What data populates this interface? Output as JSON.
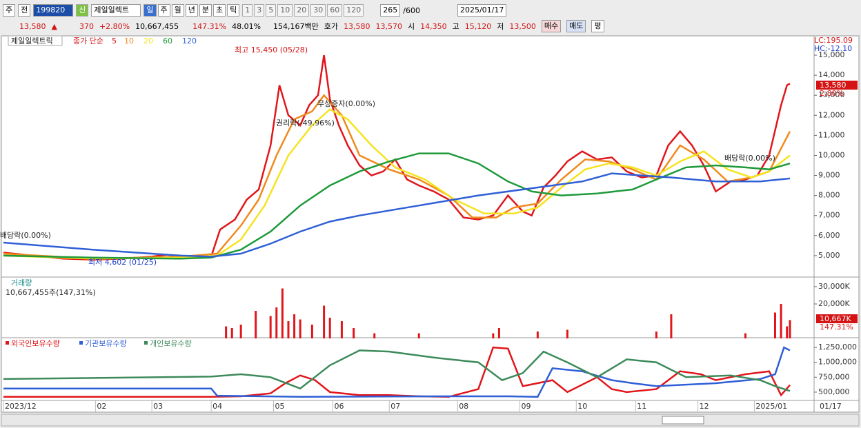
{
  "toolbar": {
    "stock_type": "주",
    "prev": "전",
    "code": "199820",
    "name": "제일일렉트",
    "new_badge": "신",
    "periods": [
      "일",
      "주",
      "월",
      "년",
      "분",
      "초",
      "틱"
    ],
    "minutes": [
      "1",
      "3",
      "5",
      "10",
      "20",
      "30",
      "60",
      "120"
    ],
    "count": "265",
    "count_max": "/600",
    "date": "2025/01/17"
  },
  "quote": {
    "price": "13,580",
    "direction": "▲",
    "change": "370",
    "change_pct": "+2.80%",
    "volume": "10,667,455",
    "volume_ratio": "147.31%",
    "turnover_pct": "48.01%",
    "amount": "154,167백만",
    "bid_ask_label": "호가",
    "ask": "13,580",
    "bid": "13,570",
    "open_label": "시",
    "open": "14,350",
    "high_label": "고",
    "high": "15,120",
    "low_label": "저",
    "low": "13,500",
    "buy": "매수",
    "sell": "매도",
    "eval": "평"
  },
  "current_date_label": "01/17",
  "chart_data": [
    {
      "type": "line",
      "name_label": "제일일렉트릭",
      "legend_prefix": "종가 단순",
      "lc_label": "LC:195.09",
      "hc_label": "HC:-12.10",
      "last_price_label": "13,580",
      "last_change_label": "2.80%",
      "annotations": [
        "최고 15,450 (05/28)",
        "최저 4,602 (01/25)",
        "배당락(0.00%)",
        "권리락(-49.96%)",
        "무상증자(0.00%)",
        "배당락(0.00%)"
      ],
      "xlim": [
        0,
        265
      ],
      "ylim": [
        4000,
        15860
      ],
      "yticks": [
        {
          "value": 5000,
          "label": "5,000"
        },
        {
          "value": 6000,
          "label": "6,000"
        },
        {
          "value": 7000,
          "label": "7,000"
        },
        {
          "value": 8000,
          "label": "8,000"
        },
        {
          "value": 9000,
          "label": "9,000"
        },
        {
          "value": 10000,
          "label": "10,000"
        },
        {
          "value": 11000,
          "label": "11,000"
        },
        {
          "value": 12000,
          "label": "12,000"
        },
        {
          "value": 13000,
          "label": "13,000"
        },
        {
          "value": 14000,
          "label": "14,000"
        },
        {
          "value": 15000,
          "label": "15,000"
        }
      ],
      "series": [
        {
          "name": "5",
          "color": "#e0161b",
          "x": [
            0,
            10,
            20,
            30,
            40,
            50,
            55,
            60,
            70,
            73,
            78,
            82,
            86,
            90,
            93,
            96,
            100,
            103,
            106,
            108,
            110,
            113,
            116,
            120,
            124,
            128,
            132,
            136,
            140,
            145,
            150,
            155,
            160,
            165,
            170,
            175,
            178,
            182,
            186,
            190,
            195,
            200,
            205,
            210,
            215,
            220,
            224,
            228,
            232,
            236,
            240,
            245,
            250,
            254,
            258,
            262,
            264,
            265
          ],
          "values": [
            5150,
            5000,
            4850,
            4800,
            4850,
            4950,
            5050,
            4950,
            4950,
            6300,
            6800,
            7800,
            8300,
            10500,
            13500,
            12000,
            11500,
            12500,
            13000,
            15000,
            12800,
            11500,
            10500,
            9500,
            9000,
            9200,
            9800,
            8800,
            8500,
            8200,
            7800,
            6900,
            6800,
            7000,
            8000,
            7200,
            7000,
            8400,
            9000,
            9700,
            10200,
            9800,
            9900,
            9200,
            8900,
            9000,
            10500,
            11200,
            10500,
            9500,
            8200,
            8700,
            8800,
            9000,
            10000,
            12500,
            13500,
            13580
          ]
        },
        {
          "name": "10",
          "color": "#f08a1c",
          "x": [
            0,
            30,
            60,
            72,
            80,
            86,
            92,
            98,
            104,
            108,
            114,
            120,
            130,
            140,
            150,
            158,
            166,
            172,
            180,
            188,
            196,
            204,
            212,
            220,
            228,
            236,
            244,
            252,
            258,
            265
          ],
          "values": [
            5100,
            4850,
            4950,
            5100,
            6500,
            7800,
            10000,
            11800,
            12200,
            13000,
            12000,
            10000,
            9300,
            8800,
            8000,
            6900,
            6900,
            7400,
            7600,
            8800,
            9800,
            9700,
            9300,
            8800,
            10500,
            9800,
            8700,
            8900,
            9200,
            11200
          ]
        },
        {
          "name": "20",
          "color": "#f5e31e",
          "x": [
            0,
            30,
            60,
            72,
            80,
            88,
            96,
            104,
            110,
            116,
            124,
            132,
            142,
            152,
            162,
            172,
            180,
            188,
            196,
            204,
            212,
            220,
            228,
            236,
            244,
            252,
            258,
            265
          ],
          "values": [
            5000,
            4850,
            4900,
            5000,
            5800,
            7500,
            10000,
            11500,
            12300,
            11800,
            10500,
            9400,
            8800,
            7800,
            7100,
            7100,
            7400,
            8400,
            9300,
            9600,
            9400,
            9000,
            9700,
            10200,
            9300,
            8900,
            9200,
            10000
          ]
        },
        {
          "name": "60",
          "color": "#1e9a3a",
          "x": [
            0,
            30,
            60,
            70,
            80,
            90,
            100,
            110,
            120,
            130,
            140,
            150,
            160,
            170,
            178,
            188,
            200,
            212,
            220,
            230,
            240,
            250,
            258,
            265
          ],
          "values": [
            5000,
            4900,
            4850,
            4900,
            5300,
            6200,
            7500,
            8500,
            9200,
            9700,
            10100,
            10100,
            9600,
            8700,
            8200,
            8000,
            8100,
            8300,
            8800,
            9400,
            9500,
            9400,
            9300,
            9600
          ]
        },
        {
          "name": "120",
          "color": "#2f5fd6",
          "x": [
            0,
            30,
            60,
            70,
            80,
            90,
            100,
            110,
            120,
            140,
            160,
            180,
            195,
            205,
            215,
            225,
            240,
            255,
            265
          ],
          "values": [
            5650,
            5300,
            5000,
            4950,
            5100,
            5600,
            6200,
            6700,
            7000,
            7500,
            8000,
            8400,
            8700,
            9100,
            9000,
            8900,
            8700,
            8700,
            8850
          ]
        }
      ]
    },
    {
      "type": "bar",
      "title": "거래량",
      "info": "10,667,455주(147,31%)",
      "current_label": "10,667K",
      "current_ratio_label": "147.31%",
      "xlim": [
        0,
        265
      ],
      "ylim": [
        0,
        34400000
      ],
      "yticks": [
        {
          "value": 20000000,
          "label": "20,000K"
        },
        {
          "value": 30000000,
          "label": "30,000K"
        }
      ],
      "series": [
        {
          "color": "#e0161b",
          "x": [
            75,
            77,
            80,
            85,
            90,
            92,
            94,
            96,
            98,
            100,
            104,
            108,
            110,
            114,
            118,
            125,
            140,
            165,
            167,
            180,
            190,
            220,
            225,
            250,
            260,
            262,
            264,
            265
          ],
          "values": [
            7000000,
            6000000,
            8000000,
            16000000,
            13000000,
            18000000,
            29000000,
            10000000,
            14000000,
            11000000,
            8000000,
            19000000,
            12000000,
            10000000,
            6000000,
            3000000,
            3000000,
            3000000,
            6000000,
            4000000,
            5000000,
            4000000,
            14000000,
            3000000,
            15000000,
            20000000,
            7000000,
            10667455
          ]
        }
      ]
    },
    {
      "type": "line",
      "xlim": [
        0,
        265
      ],
      "ylim": [
        372000,
        1378000
      ],
      "yticks": [
        {
          "value": 500000,
          "label": "500,000"
        },
        {
          "value": 750000,
          "label": "750,000"
        },
        {
          "value": 1000000,
          "label": "1,000,000"
        },
        {
          "value": 1250000,
          "label": "1,250,000"
        }
      ],
      "xticks": [
        {
          "value": 0,
          "label": "2023/12"
        },
        {
          "value": 31,
          "label": "02"
        },
        {
          "value": 50,
          "label": "03"
        },
        {
          "value": 70,
          "label": "04"
        },
        {
          "value": 91,
          "label": "05"
        },
        {
          "value": 111,
          "label": "06"
        },
        {
          "value": 130,
          "label": "07"
        },
        {
          "value": 153,
          "label": "08"
        },
        {
          "value": 174,
          "label": "09"
        },
        {
          "value": 193,
          "label": "10"
        },
        {
          "value": 213,
          "label": "11"
        },
        {
          "value": 234,
          "label": "12"
        },
        {
          "value": 253,
          "label": "2025/01"
        }
      ],
      "series": [
        {
          "name": "외국인보유수량",
          "color": "#e0161b",
          "x": [
            0,
            70,
            80,
            90,
            95,
            100,
            105,
            110,
            120,
            130,
            140,
            150,
            160,
            165,
            170,
            175,
            185,
            190,
            200,
            205,
            210,
            220,
            228,
            235,
            240,
            250,
            258,
            262,
            265
          ],
          "values": [
            420000,
            420000,
            430000,
            480000,
            650000,
            780000,
            700000,
            500000,
            450000,
            450000,
            430000,
            420000,
            550000,
            1250000,
            1230000,
            600000,
            700000,
            500000,
            750000,
            550000,
            500000,
            550000,
            850000,
            800000,
            700000,
            800000,
            850000,
            450000,
            620000
          ]
        },
        {
          "name": "기관보유수량",
          "color": "#2f5fd6",
          "x": [
            0,
            70,
            72,
            100,
            150,
            170,
            180,
            185,
            195,
            205,
            212,
            220,
            240,
            255,
            260,
            263,
            265
          ],
          "values": [
            560000,
            560000,
            440000,
            420000,
            430000,
            430000,
            420000,
            900000,
            850000,
            700000,
            650000,
            600000,
            650000,
            720000,
            800000,
            1250000,
            1200000
          ]
        },
        {
          "name": "개인보유수량",
          "color": "#3c8a5a",
          "x": [
            0,
            70,
            80,
            90,
            100,
            110,
            120,
            130,
            145,
            160,
            168,
            175,
            182,
            190,
            200,
            210,
            220,
            230,
            245,
            255,
            260,
            265
          ],
          "values": [
            720000,
            760000,
            800000,
            750000,
            560000,
            950000,
            1200000,
            1180000,
            1080000,
            1000000,
            700000,
            820000,
            1180000,
            1000000,
            750000,
            1050000,
            1000000,
            750000,
            780000,
            700000,
            600000,
            520000
          ]
        }
      ]
    }
  ]
}
